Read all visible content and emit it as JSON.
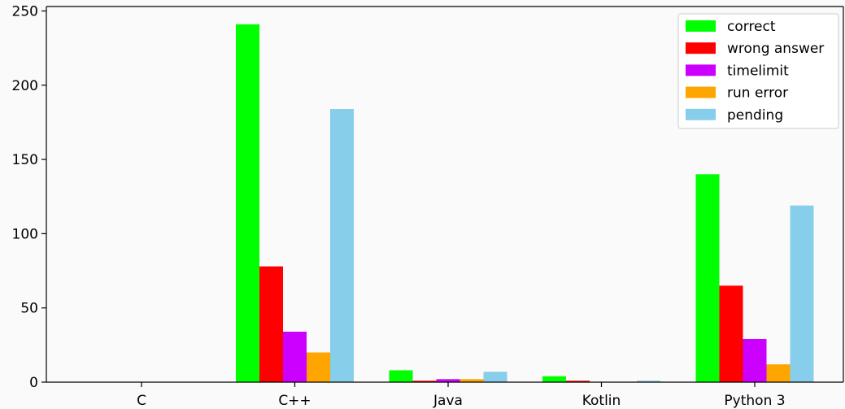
{
  "chart_data": {
    "type": "bar",
    "categories": [
      "C",
      "C++",
      "Java",
      "Kotlin",
      "Python 3"
    ],
    "series": [
      {
        "name": "correct",
        "color": "#00ff00",
        "values": [
          0,
          241,
          8,
          4,
          140
        ]
      },
      {
        "name": "wrong answer",
        "color": "#ff0000",
        "values": [
          0,
          78,
          1,
          1,
          65
        ]
      },
      {
        "name": "timelimit",
        "color": "#cc00ff",
        "values": [
          0,
          34,
          2,
          0,
          29
        ]
      },
      {
        "name": "run error",
        "color": "#ffa500",
        "values": [
          0,
          20,
          2,
          0,
          12
        ]
      },
      {
        "name": "pending",
        "color": "#87ceeb",
        "values": [
          0,
          184,
          7,
          1,
          119
        ]
      }
    ],
    "yticks": [
      "0",
      "50",
      "100",
      "150",
      "200",
      "250"
    ],
    "ylim": [
      0,
      253
    ],
    "legend_position": "top-right",
    "grid": false
  }
}
